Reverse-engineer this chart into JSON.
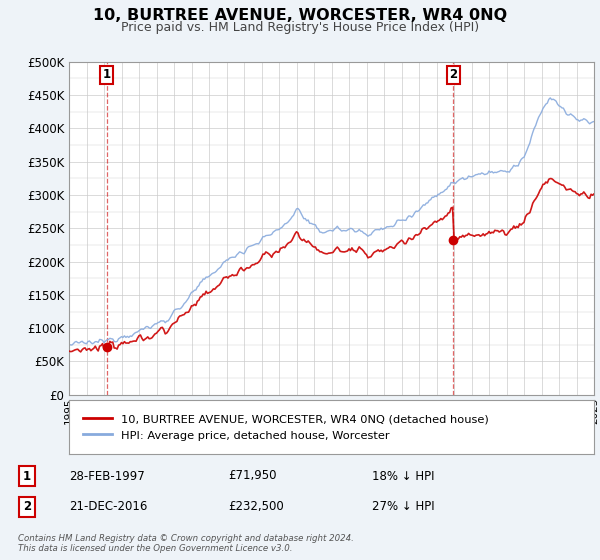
{
  "title": "10, BURTREE AVENUE, WORCESTER, WR4 0NQ",
  "subtitle": "Price paid vs. HM Land Registry's House Price Index (HPI)",
  "ylim": [
    0,
    500000
  ],
  "yticks": [
    0,
    50000,
    100000,
    150000,
    200000,
    250000,
    300000,
    350000,
    400000,
    450000,
    500000
  ],
  "ytick_labels": [
    "£0",
    "£50K",
    "£100K",
    "£150K",
    "£200K",
    "£250K",
    "£300K",
    "£350K",
    "£400K",
    "£450K",
    "£500K"
  ],
  "sale1_date": 1997.15,
  "sale1_price": 71950,
  "sale1_label": "1",
  "sale1_text": "28-FEB-1997",
  "sale1_amount": "£71,950",
  "sale1_hpi": "18% ↓ HPI",
  "sale2_date": 2016.97,
  "sale2_price": 232500,
  "sale2_label": "2",
  "sale2_text": "21-DEC-2016",
  "sale2_amount": "£232,500",
  "sale2_hpi": "27% ↓ HPI",
  "property_line_color": "#cc0000",
  "hpi_line_color": "#88aadd",
  "background_color": "#eef3f8",
  "plot_bg_color": "#ffffff",
  "grid_color": "#cccccc",
  "legend_property": "10, BURTREE AVENUE, WORCESTER, WR4 0NQ (detached house)",
  "legend_hpi": "HPI: Average price, detached house, Worcester",
  "footer": "Contains HM Land Registry data © Crown copyright and database right 2024.\nThis data is licensed under the Open Government Licence v3.0.",
  "xmin": 1995,
  "xmax": 2025
}
